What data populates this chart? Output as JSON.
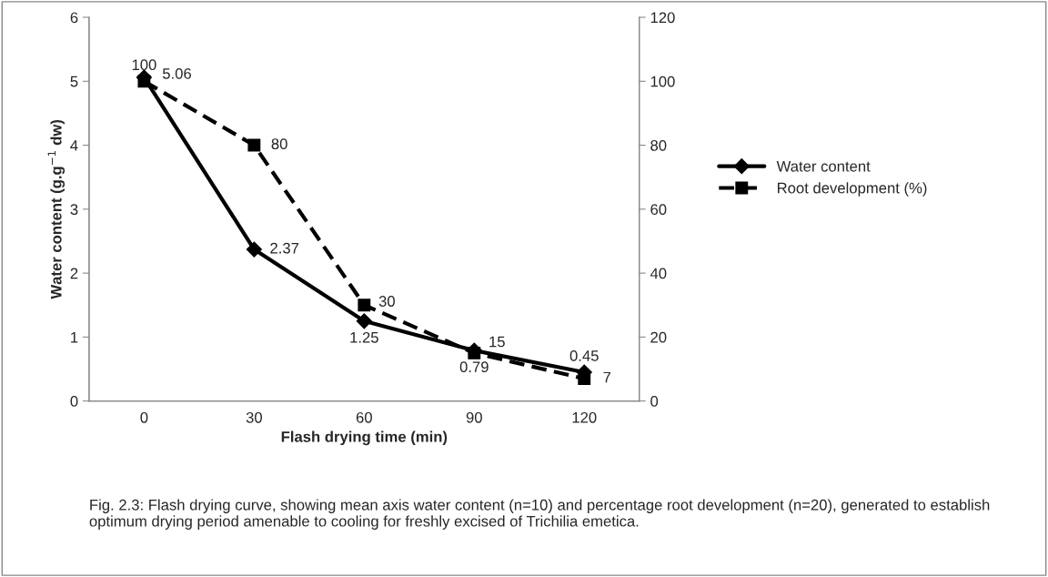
{
  "chart_data": {
    "type": "line",
    "xlabel": "Flash drying time (min)",
    "ylabel": "Water content (g.g$^{−1}$ dw)",
    "categories": [
      "0",
      "30",
      "60",
      "90",
      "120"
    ],
    "series": [
      {
        "name": "Water content",
        "color": "#000000",
        "values": [
          5.06,
          2.37,
          1.25,
          0.79,
          0.45
        ],
        "marker": "diamond",
        "line_style": "solid"
      },
      {
        "name": "Root development (%)",
        "color": "#000000",
        "values": [
          100,
          80,
          30,
          15,
          7
        ],
        "marker": "square",
        "line_style": "dashed",
        "axis": "y2"
      }
    ],
    "ylim": [
      0,
      6
    ],
    "yticks": [
      0,
      1,
      2,
      3,
      4,
      5,
      6
    ],
    "y2lim": [
      0,
      120
    ],
    "y2ticks": [
      0,
      20,
      40,
      60,
      80,
      100,
      120
    ],
    "data_labels": true,
    "legend": "right",
    "grid": false,
    "annotations": [
      "Fig. 2.3: Flash drying curve, showing mean axis water content (n=10) and percentage root development (n=20), generated to establish optimum drying period amenable to cooling for freshly excised of Trichilia emetica."
    ]
  }
}
